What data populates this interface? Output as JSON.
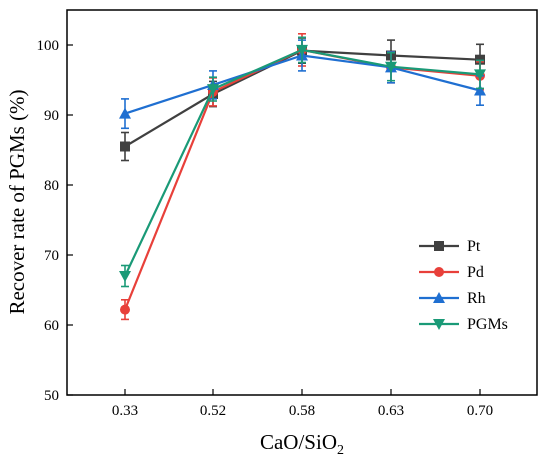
{
  "chart_data": {
    "type": "line",
    "categories": [
      "0.33",
      "0.52",
      "0.58",
      "0.63",
      "0.70"
    ],
    "xlabel": "CaO/SiO",
    "xlabel_subscript": "2",
    "ylabel": "Recover rate of PGMs (%)",
    "ylim": [
      50,
      105
    ],
    "yticks": [
      "50",
      "60",
      "70",
      "80",
      "90",
      "100"
    ],
    "grid": false,
    "legend_position": "lower-right",
    "series": [
      {
        "name": "Pt",
        "color": "#404040",
        "marker": "square",
        "values": [
          85.5,
          93.0,
          99.2,
          98.5,
          97.9
        ],
        "errors": [
          2.0,
          1.8,
          1.8,
          2.2,
          2.2
        ]
      },
      {
        "name": "Pd",
        "color": "#e8403a",
        "marker": "circle",
        "values": [
          62.2,
          93.3,
          99.3,
          96.8,
          95.6
        ],
        "errors": [
          1.4,
          2.0,
          2.3,
          2.2,
          2.0
        ]
      },
      {
        "name": "Rh",
        "color": "#1f6fd1",
        "marker": "triangle-up",
        "values": [
          90.2,
          94.3,
          98.5,
          96.8,
          93.5
        ],
        "errors": [
          2.1,
          2.0,
          2.2,
          2.2,
          2.1
        ]
      },
      {
        "name": "PGMs",
        "color": "#1a9a77",
        "marker": "triangle-down",
        "values": [
          67.0,
          93.7,
          99.3,
          96.9,
          95.8
        ],
        "errors": [
          1.5,
          1.7,
          1.8,
          2.0,
          2.0
        ]
      }
    ]
  }
}
